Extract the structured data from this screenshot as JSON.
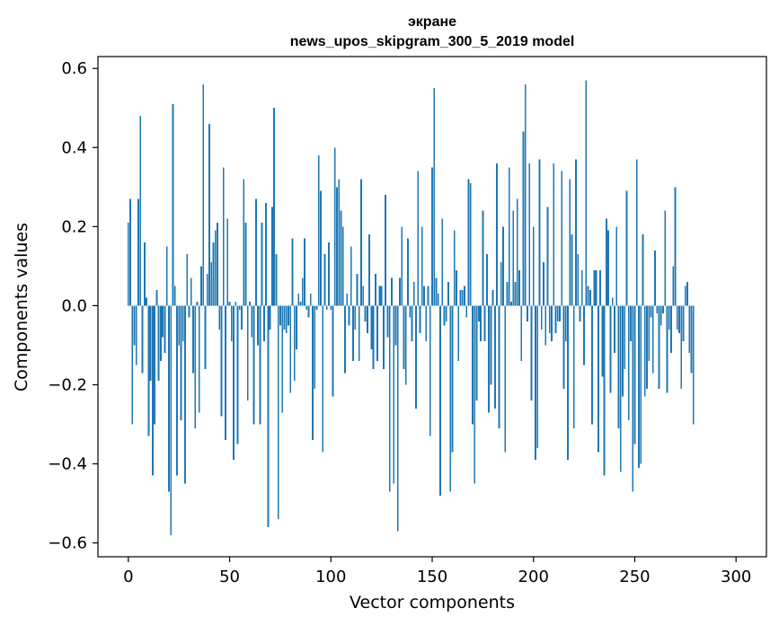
{
  "chart_data": {
    "type": "bar",
    "title_line1": "экране",
    "title_line2": "news_upos_skipgram_300_5_2019 model",
    "xlabel": "Vector components",
    "ylabel": "Components values",
    "xlim": [
      -15,
      315
    ],
    "ylim": [
      -0.635,
      0.63
    ],
    "x_ticks": [
      0,
      50,
      100,
      150,
      200,
      250,
      300
    ],
    "x_tick_labels": [
      "0",
      "50",
      "100",
      "150",
      "200",
      "250",
      "300"
    ],
    "y_ticks": [
      -0.6,
      -0.4,
      -0.2,
      0.0,
      0.2,
      0.4,
      0.6
    ],
    "y_tick_labels": [
      "−0.6",
      "−0.4",
      "−0.2",
      "0.0",
      "0.2",
      "0.4",
      "0.6"
    ],
    "bar_color": "#1f77b4",
    "grid": false,
    "values": [
      0.21,
      0.27,
      -0.3,
      -0.1,
      -0.15,
      0.27,
      0.48,
      -0.17,
      0.16,
      0.02,
      -0.33,
      -0.19,
      -0.43,
      -0.3,
      0.04,
      -0.19,
      -0.14,
      -0.08,
      -0.12,
      0.15,
      -0.47,
      -0.58,
      0.51,
      0.05,
      -0.43,
      -0.1,
      -0.29,
      -0.09,
      -0.45,
      0.13,
      -0.03,
      0.07,
      -0.17,
      -0.31,
      0.01,
      -0.27,
      0.1,
      0.56,
      -0.16,
      0.08,
      0.46,
      0.11,
      0.16,
      0.19,
      0.21,
      -0.06,
      -0.28,
      0.35,
      -0.34,
      0.22,
      0.01,
      -0.09,
      -0.39,
      0.01,
      -0.35,
      -0.01,
      -0.06,
      0.32,
      0.21,
      -0.24,
      0.01,
      -0.08,
      -0.3,
      0.27,
      -0.1,
      -0.3,
      0.21,
      -0.09,
      0.26,
      -0.56,
      -0.06,
      0.25,
      0.5,
      0.13,
      -0.54,
      -0.05,
      -0.27,
      -0.06,
      -0.07,
      -0.05,
      -0.22,
      0.17,
      -0.19,
      -0.11,
      0.03,
      0.01,
      0.07,
      0.17,
      -0.01,
      -0.03,
      0.03,
      -0.34,
      -0.21,
      -0.01,
      0.38,
      0.29,
      -0.37,
      0.13,
      -0.01,
      0.16,
      -0.01,
      -0.23,
      0.4,
      0.3,
      0.32,
      0.24,
      0.2,
      -0.17,
      0.03,
      -0.05,
      0.15,
      -0.14,
      -0.06,
      0.08,
      -0.14,
      0.32,
      0.05,
      -0.04,
      -0.07,
      0.18,
      -0.11,
      -0.16,
      0.08,
      -0.14,
      0.05,
      0.05,
      -0.16,
      0.28,
      -0.08,
      -0.47,
      0.07,
      -0.45,
      -0.1,
      -0.57,
      0.07,
      0.2,
      -0.16,
      -0.2,
      0.17,
      -0.03,
      -0.09,
      0.06,
      -0.26,
      0.34,
      -0.07,
      0.2,
      0.05,
      -0.09,
      0.05,
      -0.33,
      0.35,
      0.55,
      0.07,
      0.03,
      -0.48,
      0.22,
      -0.05,
      -0.04,
      0.06,
      -0.47,
      -0.37,
      0.19,
      0.09,
      -0.14,
      0.04,
      0.04,
      0.05,
      -0.03,
      0.32,
      0.31,
      -0.3,
      -0.45,
      -0.24,
      -0.04,
      -0.09,
      0.24,
      -0.09,
      0.13,
      -0.27,
      -0.2,
      0.04,
      -0.26,
      0.36,
      -0.31,
      0.11,
      0.2,
      -0.37,
      0.06,
      0.35,
      0.01,
      0.24,
      0.06,
      0.27,
      0.09,
      -0.14,
      0.44,
      0.56,
      -0.04,
      0.36,
      -0.24,
      0.2,
      -0.39,
      -0.36,
      0.37,
      -0.06,
      0.11,
      -0.1,
      0.25,
      -0.07,
      -0.09,
      0.36,
      -0.07,
      -0.04,
      -0.04,
      0.34,
      -0.21,
      -0.09,
      -0.39,
      0.32,
      0.18,
      -0.31,
      0.37,
      0.13,
      -0.04,
      0.09,
      -0.15,
      0.57,
      0.05,
      0.04,
      -0.3,
      0.09,
      0.09,
      -0.37,
      0.09,
      -0.18,
      -0.43,
      0.22,
      0.19,
      -0.22,
      0.02,
      -0.12,
      0.2,
      -0.31,
      -0.42,
      -0.23,
      -0.16,
      0.29,
      -0.29,
      -0.09,
      -0.47,
      -0.35,
      0.37,
      -0.41,
      -0.4,
      0.18,
      -0.23,
      -0.21,
      -0.14,
      -0.03,
      -0.17,
      0.14,
      -0.02,
      -0.21,
      -0.05,
      -0.02,
      0.24,
      -0.22,
      -0.06,
      -0.12,
      0.1,
      0.3,
      -0.06,
      -0.07,
      -0.21,
      -0.09,
      0.05,
      0.06,
      -0.12,
      -0.17,
      -0.3
    ]
  }
}
